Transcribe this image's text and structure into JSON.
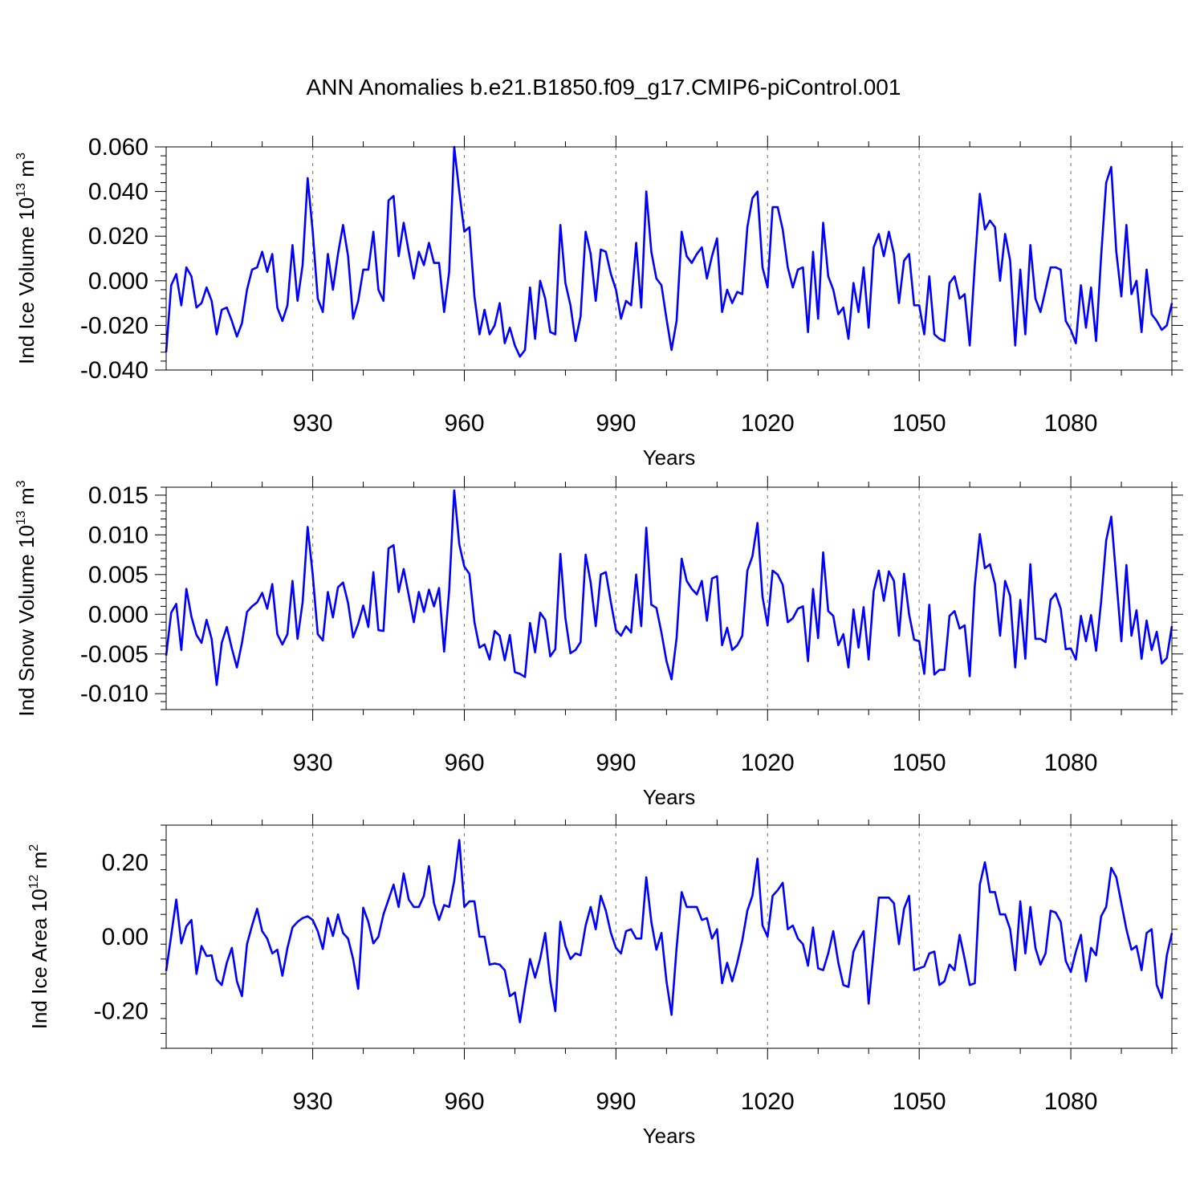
{
  "chart_data": {
    "title": "ANN Anomalies b.e21.B1850.f09_g17.CMIP6-piControl.001",
    "type": "line",
    "panels": [
      {
        "id": "ice_volume",
        "ylabel": "Ind Ice Volume",
        "yunit_power": "13",
        "yunit_base": "10",
        "yunit_suffix": "m",
        "yunit_exp": "3",
        "xlabel": "Years",
        "xlim": [
          901,
          1100
        ],
        "ylim": [
          -0.04,
          0.06
        ],
        "yticks": [
          "-0.040",
          "-0.020",
          "0.000",
          "0.020",
          "0.040",
          "0.060"
        ],
        "ytick_values": [
          -0.04,
          -0.02,
          0.0,
          0.02,
          0.04,
          0.06
        ],
        "xticks": [
          "930",
          "960",
          "990",
          "1020",
          "1050",
          "1080"
        ],
        "xtick_values": [
          930,
          960,
          990,
          1020,
          1050,
          1080
        ],
        "x_start": 901,
        "values": [
          -0.032,
          -0.002,
          0.003,
          -0.011,
          0.006,
          0.002,
          -0.012,
          -0.01,
          -0.003,
          -0.009,
          -0.024,
          -0.013,
          -0.012,
          -0.018,
          -0.025,
          -0.019,
          -0.004,
          0.005,
          0.006,
          0.013,
          0.004,
          0.012,
          -0.012,
          -0.018,
          -0.011,
          0.016,
          -0.009,
          0.007,
          0.046,
          0.022,
          -0.008,
          -0.014,
          0.012,
          -0.004,
          0.012,
          0.025,
          0.011,
          -0.017,
          -0.009,
          0.005,
          0.005,
          0.022,
          -0.004,
          -0.009,
          0.036,
          0.038,
          0.011,
          0.026,
          0.013,
          0.001,
          0.013,
          0.007,
          0.017,
          0.008,
          0.008,
          -0.014,
          0.004,
          0.06,
          0.04,
          0.022,
          0.024,
          -0.007,
          -0.024,
          -0.013,
          -0.024,
          -0.02,
          -0.01,
          -0.028,
          -0.021,
          -0.029,
          -0.034,
          -0.031,
          -0.003,
          -0.026,
          0.0,
          -0.008,
          -0.023,
          -0.024,
          0.025,
          -0.001,
          -0.011,
          -0.027,
          -0.016,
          0.022,
          0.012,
          -0.009,
          0.014,
          0.013,
          0.003,
          -0.004,
          -0.017,
          -0.009,
          -0.011,
          0.017,
          -0.012,
          0.04,
          0.013,
          0.001,
          -0.002,
          -0.017,
          -0.031,
          -0.018,
          0.022,
          0.011,
          0.008,
          0.012,
          0.015,
          0.001,
          0.011,
          0.019,
          -0.014,
          -0.004,
          -0.01,
          -0.005,
          -0.006,
          0.024,
          0.037,
          0.04,
          0.006,
          -0.003,
          0.033,
          0.033,
          0.023,
          0.006,
          -0.003,
          0.005,
          0.006,
          -0.023,
          0.013,
          -0.017,
          0.026,
          0.002,
          -0.004,
          -0.015,
          -0.012,
          -0.026,
          -0.001,
          -0.014,
          0.006,
          -0.021,
          0.015,
          0.021,
          0.011,
          0.022,
          0.012,
          -0.01,
          0.009,
          0.012,
          -0.011,
          -0.011,
          -0.024,
          0.002,
          -0.024,
          -0.026,
          -0.027,
          -0.001,
          0.002,
          -0.008,
          -0.006,
          -0.029,
          0.007,
          0.039,
          0.023,
          0.027,
          0.024,
          0.0,
          0.021,
          0.009,
          -0.029,
          0.005,
          -0.024,
          0.016,
          -0.008,
          -0.014,
          -0.004,
          0.006,
          0.006,
          0.005,
          -0.018,
          -0.022,
          -0.028,
          -0.002,
          -0.021,
          -0.003,
          -0.027,
          0.011,
          0.044,
          0.051,
          0.013,
          -0.007,
          0.025,
          -0.006,
          0.0,
          -0.023,
          0.005,
          -0.015,
          -0.018,
          -0.022,
          -0.02,
          -0.01
        ]
      },
      {
        "id": "snow_volume",
        "ylabel": "Ind Snow Volume",
        "yunit_power": "13",
        "yunit_base": "10",
        "yunit_suffix": "m",
        "yunit_exp": "3",
        "xlabel": "Years",
        "xlim": [
          901,
          1100
        ],
        "ylim": [
          -0.012,
          0.016
        ],
        "yticks": [
          "-0.010",
          "-0.005",
          "0.000",
          "0.005",
          "0.010",
          "0.015"
        ],
        "ytick_values": [
          -0.01,
          -0.005,
          0.0,
          0.005,
          0.01,
          0.015
        ],
        "xticks": [
          "930",
          "960",
          "990",
          "1020",
          "1050",
          "1080"
        ],
        "xtick_values": [
          930,
          960,
          990,
          1020,
          1050,
          1080
        ],
        "x_start": 901,
        "values": [
          -0.0052,
          0.0002,
          0.0013,
          -0.0045,
          0.0032,
          -0.0003,
          -0.0026,
          -0.0036,
          -0.0007,
          -0.0031,
          -0.0089,
          -0.0036,
          -0.0016,
          -0.0043,
          -0.0067,
          -0.0036,
          0.0003,
          0.001,
          0.0015,
          0.0027,
          0.0007,
          0.0038,
          -0.0025,
          -0.0038,
          -0.0025,
          0.0042,
          -0.0031,
          0.0015,
          0.011,
          0.005,
          -0.0025,
          -0.0033,
          0.0028,
          -0.0004,
          0.0034,
          0.004,
          0.0014,
          -0.0029,
          -0.0012,
          0.0011,
          -0.0016,
          0.0053,
          -0.002,
          -0.0021,
          0.0083,
          0.0087,
          0.0028,
          0.0057,
          0.0024,
          -0.001,
          0.0028,
          0.0003,
          0.0031,
          0.001,
          0.0033,
          -0.0047,
          0.003,
          0.0156,
          0.0088,
          0.006,
          0.0051,
          -0.001,
          -0.0042,
          -0.0038,
          -0.0057,
          -0.0021,
          -0.0027,
          -0.0058,
          -0.0026,
          -0.0073,
          -0.0075,
          -0.0079,
          -0.0011,
          -0.0048,
          0.0002,
          -0.0007,
          -0.0053,
          -0.0044,
          0.0076,
          -0.0005,
          -0.0049,
          -0.0045,
          -0.0035,
          0.0075,
          0.004,
          -0.0015,
          0.005,
          0.0053,
          0.0015,
          -0.002,
          -0.0027,
          -0.0015,
          -0.0023,
          0.005,
          -0.0015,
          0.0109,
          0.0012,
          0.0008,
          -0.0023,
          -0.0059,
          -0.0082,
          -0.003,
          0.007,
          0.0042,
          0.0032,
          0.0025,
          0.0042,
          -0.0008,
          0.0045,
          0.0048,
          -0.0039,
          -0.0017,
          -0.0045,
          -0.0039,
          -0.0027,
          0.0055,
          0.0073,
          0.0115,
          0.0022,
          -0.0014,
          0.0055,
          0.005,
          0.0037,
          -0.001,
          -0.0005,
          0.0007,
          0.001,
          -0.0059,
          0.0032,
          -0.003,
          0.0078,
          0.0004,
          -0.0002,
          -0.0039,
          -0.0025,
          -0.0067,
          0.0006,
          -0.0042,
          0.0009,
          -0.0057,
          0.0029,
          0.0055,
          0.0017,
          0.0054,
          0.0042,
          -0.0027,
          0.0051,
          0.0,
          -0.0032,
          -0.0034,
          -0.0075,
          0.0012,
          -0.0076,
          -0.007,
          -0.007,
          -0.0002,
          0.0004,
          -0.0018,
          -0.0014,
          -0.0078,
          0.0036,
          0.0101,
          0.0058,
          0.0063,
          0.0038,
          -0.0027,
          0.0042,
          0.0023,
          -0.0067,
          0.0018,
          -0.0056,
          0.0063,
          -0.0031,
          -0.0031,
          -0.0035,
          0.0018,
          0.0026,
          0.0007,
          -0.0044,
          -0.0043,
          -0.0057,
          -0.0002,
          -0.0034,
          -0.0001,
          -0.0046,
          0.0016,
          0.0093,
          0.0123,
          0.0045,
          -0.0034,
          0.0062,
          -0.0027,
          0.0005,
          -0.0056,
          -0.0008,
          -0.0045,
          -0.0022,
          -0.0062,
          -0.0055,
          -0.0015
        ]
      },
      {
        "id": "ice_area",
        "ylabel": "Ind Ice Area",
        "yunit_power": "12",
        "yunit_base": "10",
        "yunit_suffix": "m",
        "yunit_exp": "2",
        "xlabel": "Years",
        "xlim": [
          901,
          1100
        ],
        "ylim": [
          -0.3,
          0.3
        ],
        "yticks": [
          "-0.20",
          "0.00",
          "0.20"
        ],
        "ytick_values": [
          -0.2,
          0.0,
          0.2
        ],
        "xticks": [
          "930",
          "960",
          "990",
          "1020",
          "1050",
          "1080"
        ],
        "xtick_values": [
          930,
          960,
          990,
          1020,
          1050,
          1080
        ],
        "x_start": 901,
        "values": [
          -0.092,
          0.003,
          0.1,
          -0.018,
          0.028,
          0.045,
          -0.1,
          -0.025,
          -0.052,
          -0.05,
          -0.115,
          -0.13,
          -0.07,
          -0.03,
          -0.12,
          -0.16,
          -0.02,
          0.03,
          0.075,
          0.015,
          -0.005,
          -0.045,
          -0.035,
          -0.105,
          -0.03,
          0.025,
          0.04,
          0.05,
          0.055,
          0.045,
          0.015,
          -0.033,
          0.05,
          0.002,
          0.06,
          0.01,
          -0.005,
          -0.06,
          -0.14,
          0.078,
          0.04,
          -0.018,
          0.0,
          0.06,
          0.1,
          0.14,
          0.08,
          0.17,
          0.1,
          0.08,
          0.08,
          0.11,
          0.19,
          0.09,
          0.045,
          0.085,
          0.08,
          0.15,
          0.26,
          0.08,
          0.095,
          0.095,
          0.0,
          0.0,
          -0.075,
          -0.072,
          -0.075,
          -0.09,
          -0.16,
          -0.15,
          -0.23,
          -0.14,
          -0.06,
          -0.11,
          -0.06,
          0.01,
          -0.12,
          -0.2,
          0.04,
          -0.025,
          -0.06,
          -0.045,
          -0.05,
          0.03,
          0.08,
          0.02,
          0.11,
          0.07,
          0.01,
          -0.03,
          -0.045,
          0.015,
          0.02,
          -0.005,
          -0.005,
          0.16,
          0.04,
          -0.035,
          0.01,
          -0.12,
          -0.21,
          -0.03,
          0.12,
          0.08,
          0.08,
          0.08,
          0.045,
          0.05,
          -0.005,
          0.02,
          -0.125,
          -0.07,
          -0.12,
          -0.07,
          -0.01,
          0.07,
          0.11,
          0.21,
          0.03,
          0.0,
          0.11,
          0.125,
          0.145,
          0.02,
          0.03,
          -0.005,
          -0.02,
          -0.078,
          0.025,
          -0.085,
          -0.09,
          -0.045,
          0.015,
          -0.07,
          -0.13,
          -0.135,
          -0.04,
          -0.01,
          0.015,
          -0.18,
          -0.04,
          0.105,
          0.105,
          0.105,
          0.09,
          -0.02,
          0.075,
          0.11,
          -0.09,
          -0.085,
          -0.08,
          -0.045,
          -0.04,
          -0.13,
          -0.12,
          -0.075,
          -0.09,
          0.005,
          -0.06,
          -0.13,
          -0.125,
          0.14,
          0.2,
          0.12,
          0.12,
          0.06,
          0.06,
          0.02,
          -0.09,
          0.095,
          -0.045,
          0.08,
          -0.03,
          -0.075,
          -0.045,
          0.07,
          0.065,
          0.04,
          -0.065,
          -0.095,
          -0.04,
          0.005,
          -0.12,
          -0.03,
          -0.05,
          0.055,
          0.08,
          0.185,
          0.16,
          0.09,
          0.02,
          -0.035,
          -0.025,
          -0.09,
          0.01,
          0.02,
          -0.13,
          -0.165,
          -0.05,
          0.01
        ]
      }
    ],
    "refline_years": [
      930,
      960,
      990,
      1020,
      1050,
      1080
    ],
    "series_color": "#0000ff"
  }
}
